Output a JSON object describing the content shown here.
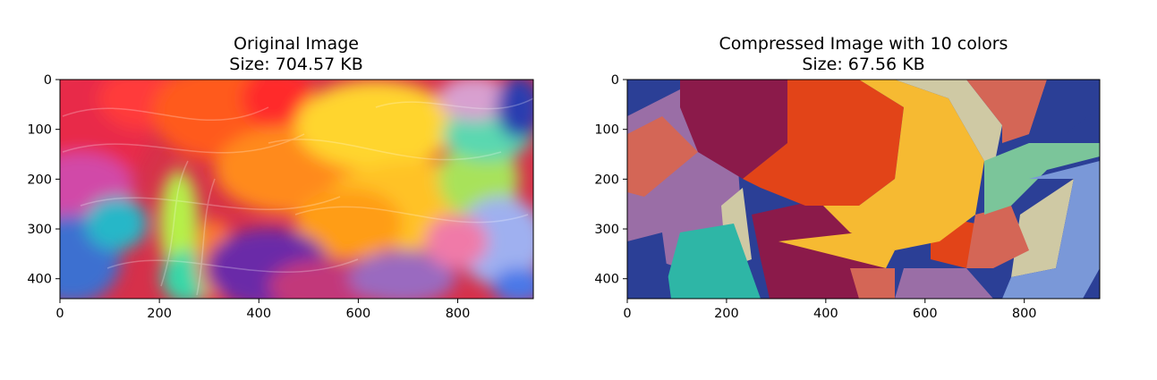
{
  "chart_data": [
    {
      "type": "image",
      "title": "Original Image",
      "subtitle": "Size: 704.57 KB",
      "xlim": [
        0,
        952
      ],
      "ylim": [
        440,
        0
      ],
      "xticks": [
        "0",
        "200",
        "400",
        "600",
        "800"
      ],
      "xtick_values": [
        0,
        200,
        400,
        600,
        800
      ],
      "yticks": [
        "0",
        "100",
        "200",
        "300",
        "400"
      ],
      "ytick_values": [
        0,
        100,
        200,
        300,
        400
      ],
      "style": "smooth multicolour brush strokes",
      "colors": [
        "#e8203a",
        "#ff7a1a",
        "#ffd23a",
        "#7de38a",
        "#2aa7d8",
        "#6a3aa8",
        "#d63ea0",
        "#a8b8ee"
      ]
    },
    {
      "type": "image",
      "title": "Compressed Image with 10 colors",
      "subtitle": "Size: 67.56 KB",
      "xlim": [
        0,
        952
      ],
      "ylim": [
        440,
        0
      ],
      "xticks": [
        "0",
        "200",
        "400",
        "600",
        "800"
      ],
      "xtick_values": [
        0,
        200,
        400,
        600,
        800
      ],
      "yticks": [
        "0",
        "100",
        "200",
        "300",
        "400"
      ],
      "ytick_values": [
        0,
        100,
        200,
        300,
        400
      ],
      "n_colors": 10,
      "style": "posterized flat colour regions",
      "colors": [
        "#2b3f96",
        "#8b1a4a",
        "#e24418",
        "#f6ba32",
        "#cfc9a4",
        "#d46656",
        "#9a6ea6",
        "#2eb6a6",
        "#7bc59a",
        "#7a98d8"
      ]
    }
  ]
}
